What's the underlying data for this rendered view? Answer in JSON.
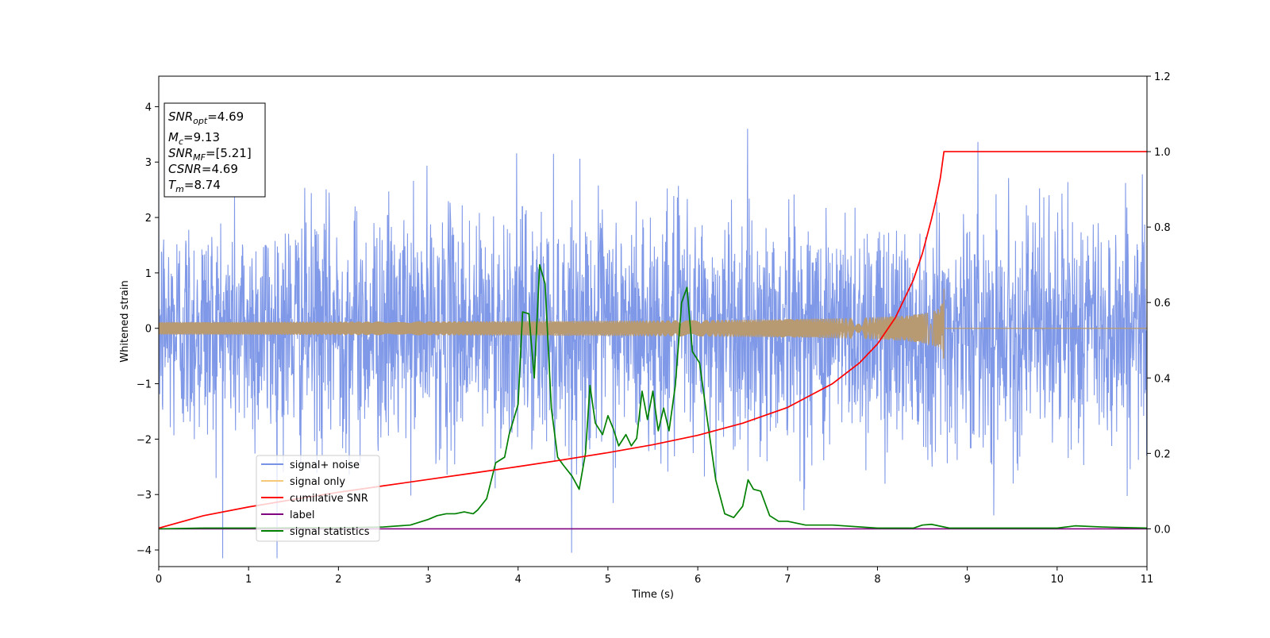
{
  "chart_data": {
    "type": "line",
    "xlabel": "Time (s)",
    "ylabel": "Whitened strain",
    "xlim": [
      0,
      11
    ],
    "ylim_left": [
      -4.3,
      4.55
    ],
    "ylim_right": [
      -0.1,
      1.2
    ],
    "x_ticks": [
      "0",
      "1",
      "2",
      "3",
      "4",
      "5",
      "6",
      "7",
      "8",
      "9",
      "10",
      "11"
    ],
    "y_ticks_left": [
      "−4",
      "−3",
      "−2",
      "−1",
      "0",
      "1",
      "2",
      "3",
      "4"
    ],
    "y_ticks_right": [
      "0.0",
      "0.2",
      "0.4",
      "0.6",
      "0.8",
      "1.0",
      "1.2"
    ],
    "annotation": {
      "snr_opt": {
        "name": "SNR",
        "sub": "opt",
        "value": "=4.69"
      },
      "mc": {
        "name": "M",
        "sub": "c",
        "value": "=9.13"
      },
      "snr_mf": {
        "name": "SNR",
        "sub": "MF",
        "value": "=[5.21]"
      },
      "csnr": {
        "name": "CSNR",
        "value": "=4.69"
      },
      "tm": {
        "name": "T",
        "sub": "m",
        "value": "=8.74"
      }
    },
    "legend": {
      "placement": "lower left",
      "entries": [
        {
          "label": "signal+ noise",
          "color": "#7892e6"
        },
        {
          "label": "signal only",
          "color": "#f5c87a"
        },
        {
          "label": "cumilative SNR",
          "color": "#ff0000"
        },
        {
          "label": "label",
          "color": "#800080"
        },
        {
          "label": "signal statistics",
          "color": "#008000"
        }
      ]
    },
    "series": [
      {
        "name": "signal+ noise",
        "axis": "left",
        "color": "#7892e6",
        "description_note": "dense white noise, mostly within ±2.3, occasional spikes to ±4.1",
        "x_range": [
          0,
          11
        ],
        "typical_amplitude": 1.0,
        "max_peak": 4.15
      },
      {
        "name": "signal only",
        "axis": "left",
        "color": "#b89a72",
        "x_range": [
          0,
          8.74
        ],
        "chirp_peak_time": 8.74,
        "peak_amplitude": 0.75,
        "after_merger_value": 0
      },
      {
        "name": "cumilative SNR",
        "axis": "right",
        "color": "#ff0000",
        "x": [
          0,
          0.5,
          1,
          1.5,
          2,
          2.5,
          3,
          3.5,
          4,
          4.5,
          5,
          5.5,
          6,
          6.5,
          7,
          7.5,
          7.8,
          8.0,
          8.2,
          8.4,
          8.5,
          8.6,
          8.65,
          8.7,
          8.74,
          8.76,
          9,
          10,
          11
        ],
        "y": [
          0.002,
          0.035,
          0.058,
          0.078,
          0.097,
          0.114,
          0.131,
          0.148,
          0.165,
          0.183,
          0.202,
          0.223,
          0.248,
          0.28,
          0.322,
          0.385,
          0.44,
          0.49,
          0.56,
          0.66,
          0.73,
          0.82,
          0.87,
          0.93,
          1.0,
          1.0,
          1.0,
          1.0,
          1.0
        ]
      },
      {
        "name": "label",
        "axis": "right",
        "color": "#800080",
        "x": [
          0,
          11
        ],
        "y": [
          0.0,
          0.0
        ]
      },
      {
        "name": "signal statistics",
        "axis": "right",
        "color": "#008000",
        "x": [
          0,
          0.5,
          1,
          1.5,
          2,
          2.5,
          2.8,
          3.0,
          3.1,
          3.2,
          3.3,
          3.4,
          3.5,
          3.55,
          3.65,
          3.75,
          3.85,
          3.9,
          4.0,
          4.05,
          4.12,
          4.18,
          4.24,
          4.3,
          4.37,
          4.44,
          4.5,
          4.6,
          4.68,
          4.75,
          4.8,
          4.86,
          4.94,
          5.0,
          5.06,
          5.12,
          5.2,
          5.26,
          5.32,
          5.38,
          5.44,
          5.5,
          5.56,
          5.62,
          5.68,
          5.75,
          5.82,
          5.88,
          5.94,
          6.02,
          6.1,
          6.2,
          6.3,
          6.4,
          6.5,
          6.56,
          6.62,
          6.7,
          6.8,
          6.9,
          7.0,
          7.2,
          7.5,
          8.0,
          8.4,
          8.5,
          8.6,
          8.8,
          9.0,
          10.0,
          10.2,
          10.5,
          11.0
        ],
        "y": [
          0.0,
          0.002,
          0.002,
          0.003,
          0.003,
          0.005,
          0.01,
          0.025,
          0.035,
          0.04,
          0.04,
          0.045,
          0.04,
          0.05,
          0.08,
          0.175,
          0.19,
          0.25,
          0.33,
          0.575,
          0.57,
          0.4,
          0.7,
          0.65,
          0.32,
          0.19,
          0.17,
          0.14,
          0.105,
          0.2,
          0.38,
          0.28,
          0.25,
          0.3,
          0.265,
          0.22,
          0.25,
          0.22,
          0.24,
          0.365,
          0.29,
          0.365,
          0.26,
          0.32,
          0.26,
          0.38,
          0.6,
          0.64,
          0.47,
          0.44,
          0.3,
          0.13,
          0.04,
          0.03,
          0.06,
          0.13,
          0.105,
          0.1,
          0.035,
          0.02,
          0.02,
          0.01,
          0.01,
          0.002,
          0.002,
          0.01,
          0.012,
          0.002,
          0.002,
          0.002,
          0.008,
          0.005,
          0.002
        ]
      }
    ]
  }
}
